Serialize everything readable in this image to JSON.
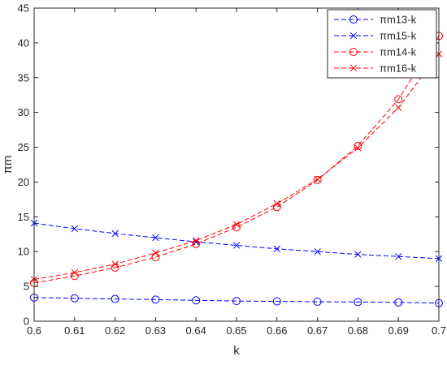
{
  "chart_data": {
    "type": "line",
    "xlabel": "k",
    "ylabel": "πm",
    "xlim": [
      0.6,
      0.7
    ],
    "ylim": [
      0,
      45
    ],
    "x": [
      0.6,
      0.61,
      0.62,
      0.63,
      0.64,
      0.65,
      0.66,
      0.67,
      0.68,
      0.69,
      0.7
    ],
    "x_ticks": [
      "0.6",
      "0.61",
      "0.62",
      "0.63",
      "0.64",
      "0.65",
      "0.66",
      "0.67",
      "0.68",
      "0.69",
      "0.7"
    ],
    "y_ticks": [
      "0",
      "5",
      "10",
      "15",
      "20",
      "25",
      "30",
      "35",
      "40",
      "45"
    ],
    "grid": false,
    "legend_position": "top-right",
    "series": [
      {
        "name": "πm13-k",
        "color": "#0000ff",
        "marker": "circle",
        "line": "dashed",
        "values": [
          3.4,
          3.3,
          3.2,
          3.1,
          3.0,
          2.9,
          2.85,
          2.8,
          2.75,
          2.7,
          2.6
        ]
      },
      {
        "name": "πm15-k",
        "color": "#0000ff",
        "marker": "x",
        "line": "dashed",
        "values": [
          14.1,
          13.3,
          12.6,
          12.0,
          11.4,
          10.9,
          10.4,
          10.0,
          9.6,
          9.3,
          9.0
        ]
      },
      {
        "name": "πm14-k",
        "color": "#ff0000",
        "marker": "circle",
        "line": "dashed",
        "values": [
          5.5,
          6.5,
          7.7,
          9.2,
          11.1,
          13.5,
          16.4,
          20.3,
          25.2,
          31.9,
          41.0
        ]
      },
      {
        "name": "πm16-k",
        "color": "#ff0000",
        "marker": "x",
        "line": "dashed",
        "values": [
          6.0,
          7.0,
          8.2,
          9.8,
          11.6,
          13.9,
          16.9,
          20.4,
          24.9,
          30.7,
          38.4
        ]
      }
    ]
  }
}
